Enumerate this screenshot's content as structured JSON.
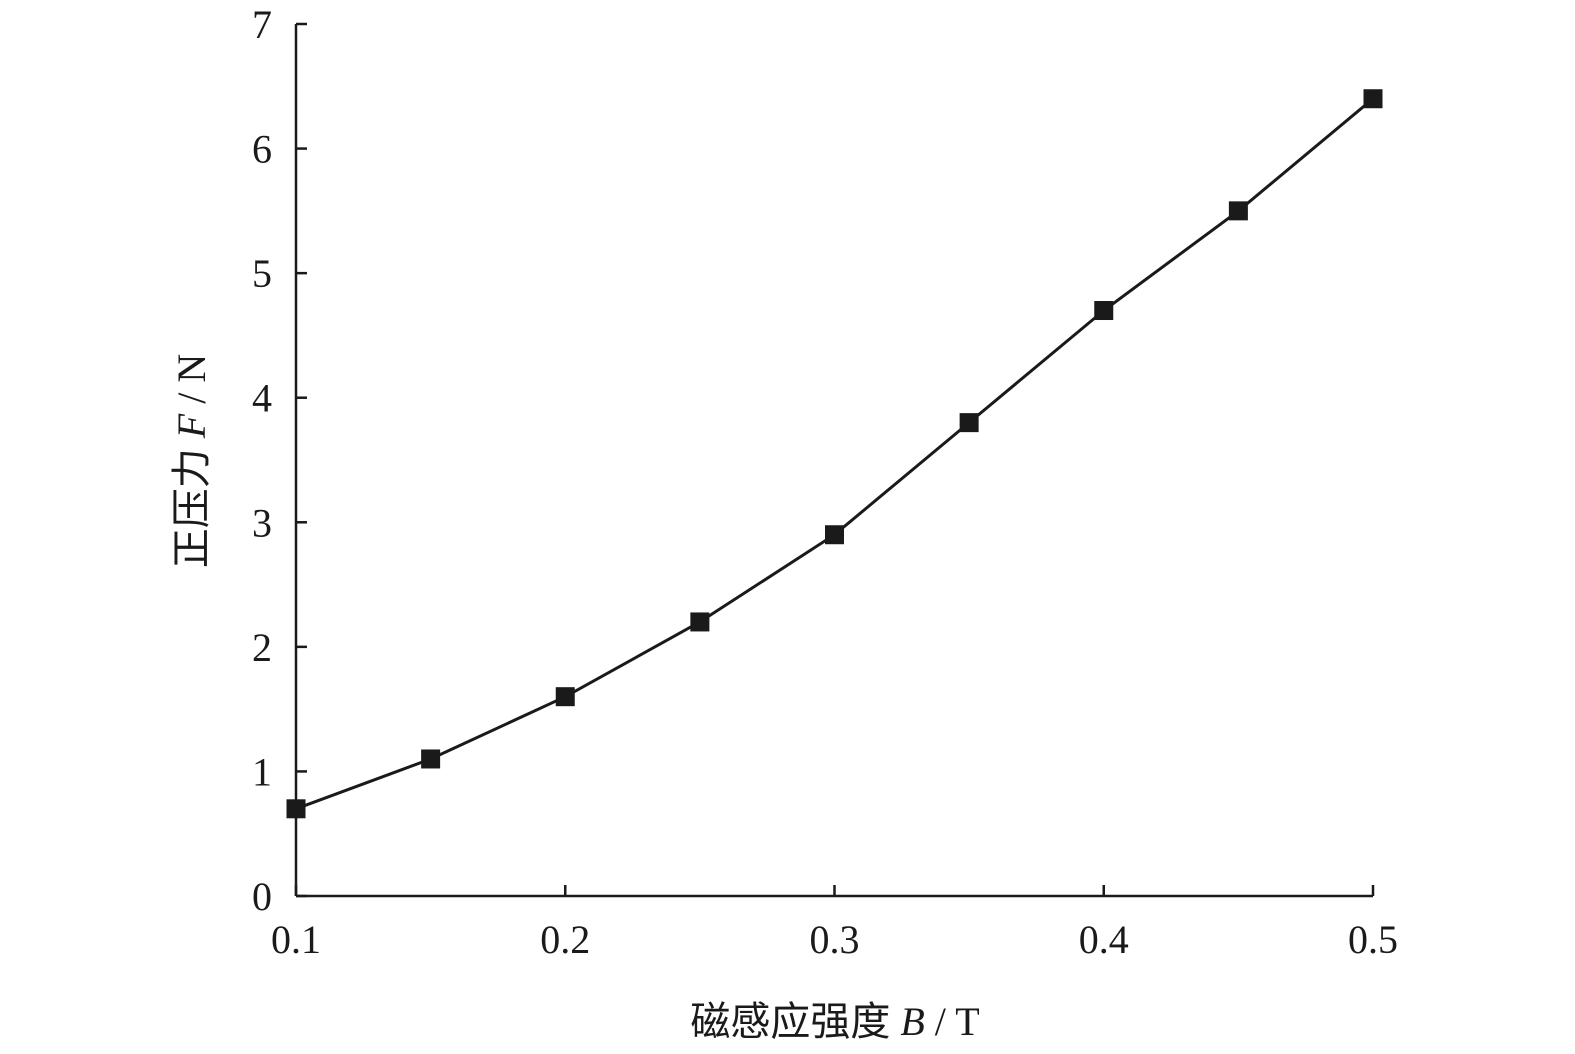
{
  "chart_data": {
    "type": "line",
    "title": "",
    "xlabel": {
      "prefix": "磁感应强度 ",
      "symbol": "B",
      "unit": " / T"
    },
    "ylabel": {
      "prefix": "正压力 ",
      "symbol": "F",
      "unit": " / N"
    },
    "xlim": [
      0.1,
      0.5
    ],
    "ylim": [
      0,
      7
    ],
    "x_ticks": [
      "0.1",
      "0.2",
      "0.3",
      "0.4",
      "0.5"
    ],
    "y_ticks": [
      "0",
      "1",
      "2",
      "3",
      "4",
      "5",
      "6",
      "7"
    ],
    "grid": false,
    "legend": "none",
    "marker": "square",
    "line_color": "#1a1a1a",
    "series": [
      {
        "x": [
          0.1,
          0.15,
          0.2,
          0.25,
          0.3,
          0.35,
          0.4,
          0.45,
          0.5
        ],
        "y": [
          0.7,
          1.1,
          1.6,
          2.2,
          2.9,
          3.8,
          4.7,
          5.5,
          6.4
        ]
      }
    ]
  }
}
